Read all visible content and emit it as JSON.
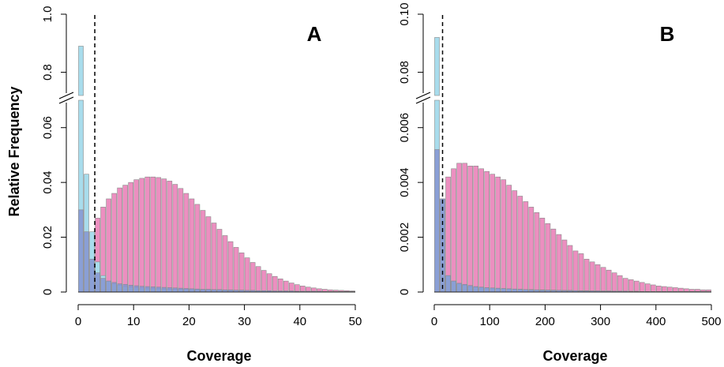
{
  "figure": {
    "ylabel": "Relative Frequency",
    "colors": {
      "pink": "#ec8fc0",
      "light_blue": "#a8dcec",
      "dark_blue": "#8594d1",
      "bar_edge": "#8a8a8a",
      "axis": "#000000"
    }
  },
  "chart_data": [
    {
      "type": "bar",
      "panel": "A",
      "xlabel": "Coverage",
      "ylabel": "Relative Frequency",
      "xlim": [
        0,
        50
      ],
      "xticks": [
        "0",
        "10",
        "20",
        "30",
        "40",
        "50"
      ],
      "y_lower_range": [
        0,
        0.07
      ],
      "y_lower_ticks": [
        "0",
        "0.02",
        "0.04",
        "0.06"
      ],
      "y_upper_range": [
        0.72,
        1.0
      ],
      "y_upper_ticks": [
        "0.8",
        "1.0"
      ],
      "y_axis_break": true,
      "threshold": 3,
      "bin_width": 1,
      "series": [
        {
          "color": "pink",
          "values": [
            0.0,
            0.0,
            0.0,
            0.027,
            0.031,
            0.034,
            0.036,
            0.038,
            0.039,
            0.04,
            0.041,
            0.0415,
            0.042,
            0.042,
            0.0418,
            0.0413,
            0.0405,
            0.0393,
            0.0378,
            0.036,
            0.034,
            0.032,
            0.0298,
            0.0275,
            0.0252,
            0.0229,
            0.0206,
            0.0184,
            0.0163,
            0.0143,
            0.0125,
            0.0108,
            0.0093,
            0.0079,
            0.0067,
            0.0057,
            0.0048,
            0.004,
            0.0033,
            0.0027,
            0.0022,
            0.0018,
            0.0015,
            0.0012,
            0.001,
            0.0008,
            0.0007,
            0.0006,
            0.0005,
            0.0004
          ]
        },
        {
          "color": "light_blue",
          "values": [
            0.89,
            0.043,
            0.022,
            0.011,
            0.006,
            0.004,
            0.003,
            0.0025,
            0.002,
            0.0018,
            0.0016,
            0.0015,
            0.0014,
            0.0013,
            0.0012,
            0.0011,
            0.001,
            0.001,
            0.0009,
            0.0009,
            0.0008,
            0.0008,
            0.0007,
            0.0007,
            0.0006,
            0.0006,
            0.0006,
            0.0005,
            0.0005,
            0.0005,
            0.0004,
            0.0004,
            0.0004,
            0.0004,
            0.0003,
            0.0003,
            0.0003,
            0.0003,
            0.0003,
            0.0002,
            0.0002,
            0.0002,
            0.0002,
            0.0002,
            0.0002,
            0.0002,
            0.0002,
            0.0002,
            0.0002,
            0.0002
          ]
        },
        {
          "color": "dark_blue",
          "values": [
            0.03,
            0.022,
            0.012,
            0.007,
            0.005,
            0.004,
            0.0035,
            0.003,
            0.0028,
            0.0025,
            0.0023,
            0.0021,
            0.002,
            0.0019,
            0.0018,
            0.0017,
            0.0016,
            0.0015,
            0.0014,
            0.0013,
            0.0012,
            0.0011,
            0.001,
            0.001,
            0.0009,
            0.0009,
            0.0008,
            0.0008,
            0.0007,
            0.0007,
            0.0006,
            0.0006,
            0.0005,
            0.0005,
            0.0005,
            0.0004,
            0.0004,
            0.0004,
            0.0004,
            0.0003,
            0.0003,
            0.0003,
            0.0003,
            0.0003,
            0.0002,
            0.0002,
            0.0002,
            0.0002,
            0.0002,
            0.0002
          ]
        }
      ]
    },
    {
      "type": "bar",
      "panel": "B",
      "xlabel": "Coverage",
      "xlim": [
        0,
        500
      ],
      "xticks": [
        "0",
        "100",
        "200",
        "300",
        "400",
        "500"
      ],
      "y_lower_range": [
        0,
        0.007
      ],
      "y_lower_ticks": [
        "0",
        "0.002",
        "0.004",
        "0.006"
      ],
      "y_upper_range": [
        0.072,
        0.1
      ],
      "y_upper_ticks": [
        "0.08",
        "0.10"
      ],
      "y_axis_break": true,
      "threshold": 15,
      "bin_width": 10,
      "series": [
        {
          "color": "pink",
          "values": [
            0.0,
            0.0,
            0.0042,
            0.0045,
            0.0047,
            0.0047,
            0.0046,
            0.0046,
            0.0045,
            0.0044,
            0.0043,
            0.0042,
            0.0041,
            0.0039,
            0.0037,
            0.0035,
            0.0033,
            0.0031,
            0.0029,
            0.0027,
            0.0025,
            0.0023,
            0.0021,
            0.0019,
            0.0017,
            0.0015,
            0.0014,
            0.0012,
            0.0011,
            0.001,
            0.0009,
            0.0008,
            0.0007,
            0.0006,
            0.0005,
            0.00045,
            0.0004,
            0.00035,
            0.0003,
            0.00026,
            0.00022,
            0.0002,
            0.00018,
            0.00016,
            0.00014,
            0.00012,
            0.0001,
            0.0001,
            8e-05,
            8e-05
          ]
        },
        {
          "color": "light_blue",
          "values": [
            0.092,
            0.0034,
            0.0006,
            0.0004,
            0.0003,
            0.00025,
            0.0002,
            0.00018,
            0.00016,
            0.00015,
            0.00014,
            0.00013,
            0.00012,
            0.00011,
            0.0001,
            0.0001,
            9e-05,
            9e-05,
            8e-05,
            8e-05,
            7e-05,
            7e-05,
            6e-05,
            6e-05,
            6e-05,
            5e-05,
            5e-05,
            5e-05,
            4e-05,
            4e-05,
            4e-05,
            4e-05,
            3e-05,
            3e-05,
            3e-05,
            3e-05,
            3e-05,
            2e-05,
            2e-05,
            2e-05,
            2e-05,
            2e-05,
            2e-05,
            2e-05,
            2e-05,
            2e-05,
            2e-05,
            2e-05,
            2e-05,
            2e-05
          ]
        },
        {
          "color": "dark_blue",
          "values": [
            0.0052,
            0.0034,
            0.0006,
            0.0004,
            0.00032,
            0.00028,
            0.00024,
            0.0002,
            0.00018,
            0.00016,
            0.00015,
            0.00014,
            0.00013,
            0.00012,
            0.00011,
            0.0001,
            9e-05,
            8e-05,
            8e-05,
            7e-05,
            7e-05,
            6e-05,
            6e-05,
            5e-05,
            5e-05,
            5e-05,
            4e-05,
            4e-05,
            4e-05,
            4e-05,
            3e-05,
            3e-05,
            3e-05,
            3e-05,
            3e-05,
            2e-05,
            2e-05,
            2e-05,
            2e-05,
            2e-05,
            2e-05,
            2e-05,
            2e-05,
            2e-05,
            2e-05,
            2e-05,
            2e-05,
            2e-05,
            2e-05,
            2e-05
          ]
        }
      ]
    }
  ]
}
